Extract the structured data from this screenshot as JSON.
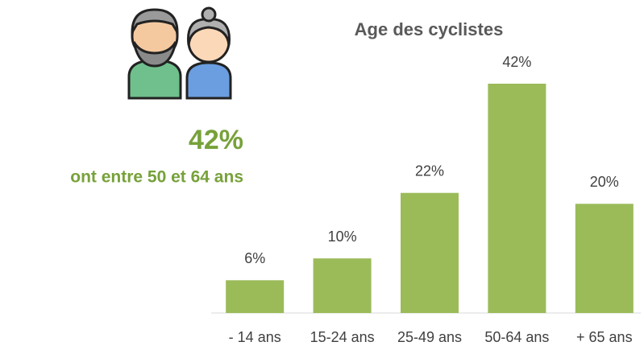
{
  "chart_data": {
    "type": "bar",
    "title": "Age des cyclistes",
    "categories": [
      "- 14 ans",
      "15-24 ans",
      "25-49 ans",
      "50-64 ans",
      "+ 65 ans"
    ],
    "values": [
      6,
      10,
      22,
      42,
      20
    ],
    "value_labels": [
      "6%",
      "10%",
      "22%",
      "42%",
      "20%"
    ],
    "color": "#9bbb59",
    "ylim": [
      0,
      42
    ],
    "annotations": [
      "42%",
      "ont entre 50 et 64 ans"
    ]
  }
}
